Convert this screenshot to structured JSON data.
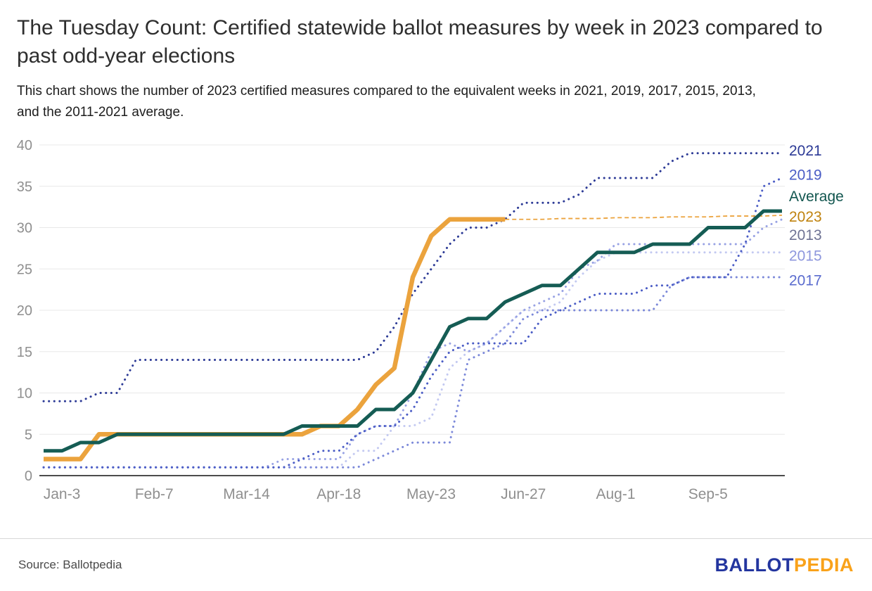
{
  "header": {
    "title": "The Tuesday Count: Certified statewide ballot measures by week in 2023 compared to past odd-year elections",
    "subtitle": "This chart shows the number of 2023 certified measures compared to the equivalent weeks in 2021, 2019, 2017, 2015, 2013, and the 2011-2021 average."
  },
  "footer": {
    "source": "Source: Ballotpedia",
    "logo": {
      "part1": "BALLOT",
      "part2": "PEDIA"
    }
  },
  "colors": {
    "grid": "#e8e8e8",
    "axis": "#111111",
    "tick_text": "#8f8f8f"
  },
  "chart_data": {
    "type": "line",
    "title": "The Tuesday Count: Certified statewide ballot measures by week in 2023 compared to past odd-year elections",
    "grid": "horizontal",
    "legend_position": "right-edge-labels",
    "ylim": [
      0,
      40
    ],
    "y_ticks": [
      0,
      5,
      10,
      15,
      20,
      25,
      30,
      35,
      40
    ],
    "weeks_total": 40,
    "x_tick_weeks": [
      0,
      5,
      10,
      15,
      20,
      25,
      30,
      35
    ],
    "x_tick_labels": [
      "Jan-3",
      "Feb-7",
      "Mar-14",
      "Apr-18",
      "May-23",
      "Jun-27",
      "Aug-1",
      "Sep-5"
    ],
    "series": [
      {
        "name": "2015",
        "style": "dotted",
        "color": "#c3c9f1",
        "label_color": "#8e97dd",
        "label_y": 26.6,
        "values": [
          1,
          1,
          1,
          1,
          1,
          1,
          1,
          1,
          1,
          1,
          1,
          1,
          1,
          1,
          1,
          1,
          1,
          3,
          3,
          6,
          6,
          7,
          13,
          15,
          16,
          18,
          20,
          20,
          21,
          24,
          26,
          27,
          27,
          27,
          27,
          27,
          27,
          27,
          27,
          27,
          27
        ]
      },
      {
        "name": "2017",
        "style": "dotted",
        "color": "#7b88d9",
        "label_color": "#5a6bce",
        "label_y": 23.6,
        "values": [
          1,
          1,
          1,
          1,
          1,
          1,
          1,
          1,
          1,
          1,
          1,
          1,
          1,
          1,
          1,
          1,
          1,
          1,
          2,
          3,
          4,
          4,
          4,
          14,
          15,
          16,
          19,
          20,
          20,
          20,
          20,
          20,
          20,
          20,
          23,
          24,
          24,
          24,
          24,
          24,
          24
        ]
      },
      {
        "name": "2013",
        "style": "dotted",
        "color": "#98a2e4",
        "label_color": "#6f7394",
        "label_y": 29.1,
        "values": [
          1,
          1,
          1,
          1,
          1,
          1,
          1,
          1,
          1,
          1,
          1,
          1,
          1,
          2,
          2,
          2,
          2,
          5,
          6,
          6,
          10,
          15,
          16,
          15,
          16,
          18,
          20,
          21,
          22,
          25,
          26,
          28,
          28,
          28,
          28,
          28,
          28,
          28,
          28,
          30,
          31
        ]
      },
      {
        "name": "2019",
        "style": "dotted",
        "color": "#4a5cc5",
        "label_color": "#4a5cc5",
        "label_y": 36.4,
        "values": [
          1,
          1,
          1,
          1,
          1,
          1,
          1,
          1,
          1,
          1,
          1,
          1,
          1,
          1,
          2,
          3,
          3,
          5,
          6,
          6,
          8,
          12,
          15,
          16,
          16,
          16,
          16,
          19,
          20,
          21,
          22,
          22,
          22,
          23,
          23,
          24,
          24,
          24,
          28,
          35,
          36
        ]
      },
      {
        "name": "2021",
        "style": "dotted",
        "color": "#2c3a96",
        "label_color": "#2c3a96",
        "label_y": 39.3,
        "values": [
          9,
          9,
          9,
          10,
          10,
          14,
          14,
          14,
          14,
          14,
          14,
          14,
          14,
          14,
          14,
          14,
          14,
          14,
          15,
          18,
          22,
          25,
          28,
          30,
          30,
          31,
          33,
          33,
          33,
          34,
          36,
          36,
          36,
          36,
          38,
          39,
          39,
          39,
          39,
          39,
          39
        ]
      },
      {
        "name": "2023",
        "style": "solid",
        "width": 6.5,
        "color": "#eba33d",
        "label_color": "#bf820e",
        "label_y": 31.3,
        "values": [
          2,
          2,
          2,
          5,
          5,
          5,
          5,
          5,
          5,
          5,
          5,
          5,
          5,
          5,
          5,
          6,
          6,
          8,
          11,
          13,
          24,
          29,
          31,
          31,
          31,
          31
        ],
        "projection": {
          "from_week": 25,
          "values": [
            31,
            31,
            31,
            31.1,
            31.1,
            31.1,
            31.2,
            31.2,
            31.2,
            31.3,
            31.3,
            31.3,
            31.4,
            31.4,
            31.4,
            31.5
          ]
        }
      },
      {
        "name": "Average",
        "style": "solid",
        "width": 5,
        "color": "#155c54",
        "label_color": "#12564f",
        "label_y": 33.8,
        "values": [
          3,
          3,
          4,
          4,
          5,
          5,
          5,
          5,
          5,
          5,
          5,
          5,
          5,
          5,
          6,
          6,
          6,
          6,
          8,
          8,
          10,
          14,
          18,
          19,
          19,
          21,
          22,
          23,
          23,
          25,
          27,
          27,
          27,
          28,
          28,
          28,
          30,
          30,
          30,
          32,
          32
        ]
      }
    ]
  }
}
